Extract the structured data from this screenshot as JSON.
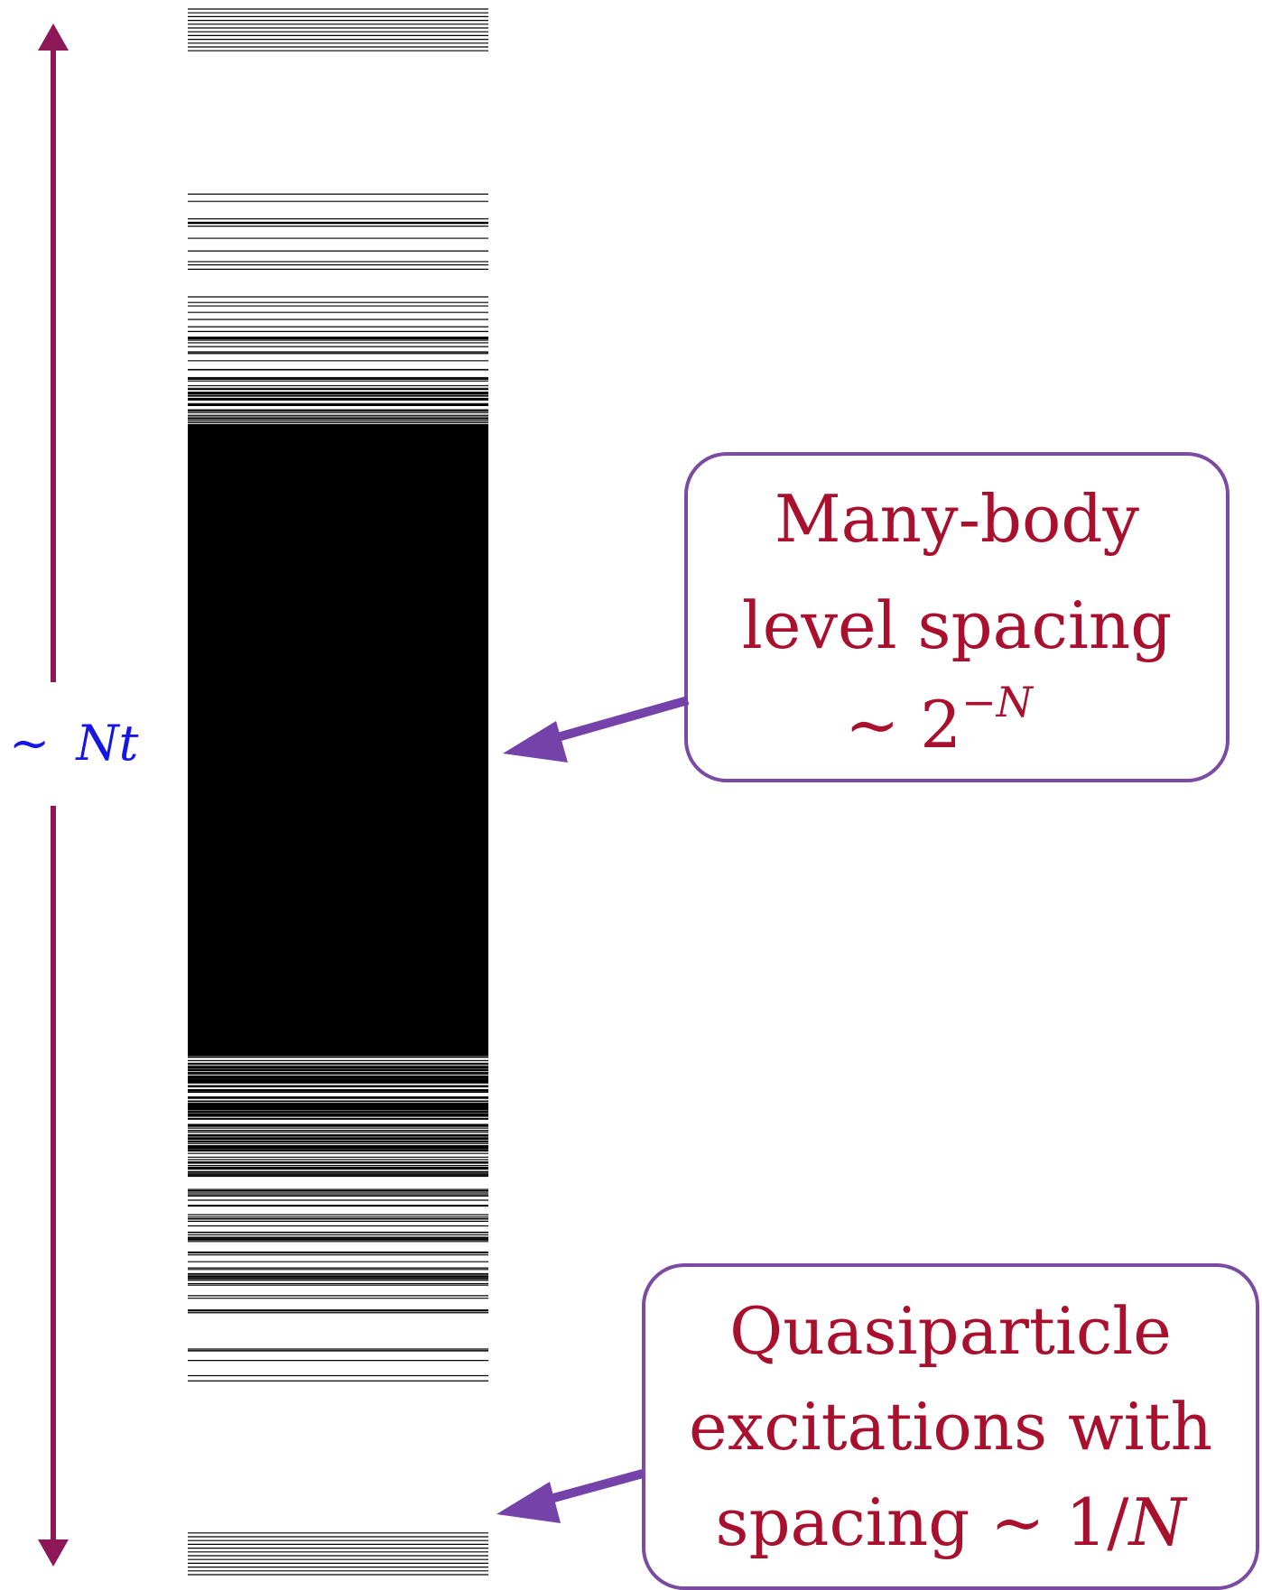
{
  "range_label": {
    "prefix": "∼",
    "value": "Nt",
    "color": "#1515e8"
  },
  "callout_many_body": {
    "line1": "Many-body",
    "line2": "level spacing",
    "line3_prefix": "∼ 2",
    "line3_exponent": "−N"
  },
  "callout_quasiparticle": {
    "line1": "Quasiparticle",
    "line2": "excitations with",
    "line3_prefix": "spacing ∼ 1/",
    "line3_var": "N"
  },
  "colors": {
    "range_arrow": "#8e1757",
    "callout_border": "#7b4aa3",
    "pointer_arrow": "#7442a8",
    "callout_text": "#a8102e",
    "levels": "#000000"
  }
}
